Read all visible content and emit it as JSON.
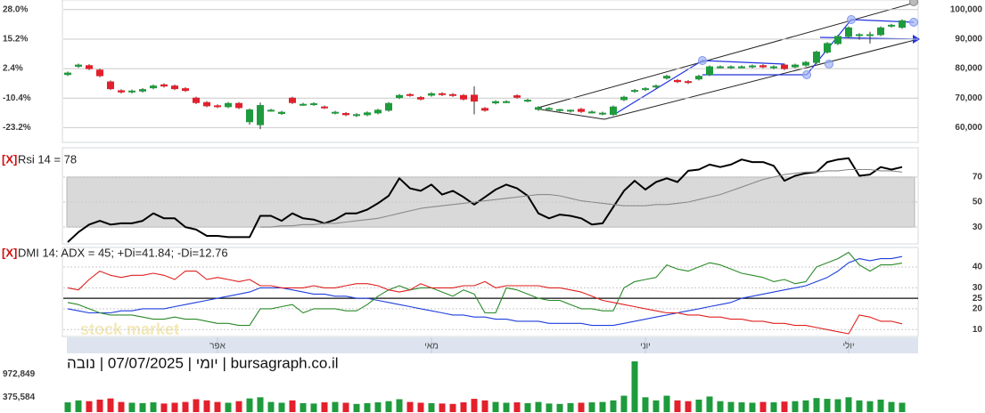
{
  "chart_data": [
    {
      "type": "candlestick",
      "categories": [
        null,
        null,
        null,
        null,
        null,
        null,
        null,
        null,
        null,
        null,
        null,
        null,
        null,
        null,
        "אפר",
        null,
        null,
        null,
        null,
        null,
        null,
        null,
        null,
        null,
        null,
        null,
        null,
        null,
        null,
        null,
        null,
        null,
        null,
        null,
        "מאי",
        null,
        null,
        null,
        null,
        null,
        null,
        null,
        null,
        null,
        null,
        null,
        null,
        null,
        null,
        null,
        null,
        null,
        null,
        null,
        "יוני",
        null,
        null,
        null,
        null,
        null,
        null,
        null,
        null,
        null,
        null,
        null,
        null,
        null,
        null,
        null,
        null,
        null,
        null,
        "יולי",
        null,
        null,
        null,
        null,
        null
      ],
      "open": [
        78000,
        80800,
        81000,
        79500,
        75500,
        72500,
        72100,
        72400,
        73500,
        74500,
        74100,
        73200,
        70000,
        68500,
        67400,
        67100,
        68200,
        62000,
        61000,
        65900,
        64800,
        70000,
        67900,
        67900,
        67000,
        65000,
        64800,
        64100,
        64400,
        65000,
        65900,
        70200,
        71200,
        70200,
        71000,
        71500,
        71200,
        70900,
        71000,
        66500,
        68400,
        68800,
        70800,
        69100,
        66200,
        66500,
        65900,
        65600,
        66200,
        65000,
        64700,
        64500,
        69500,
        72300,
        72900,
        73800,
        76800,
        76000,
        75600,
        76500,
        78000,
        80600,
        80400,
        80600,
        80600,
        81000,
        80300,
        81200,
        80600,
        81200,
        82100,
        85600,
        88500,
        90900,
        91500,
        91200,
        91500,
        94400,
        94000
      ],
      "high": [
        79000,
        81700,
        81500,
        80000,
        76000,
        73000,
        72900,
        73400,
        74600,
        75000,
        74600,
        73700,
        70500,
        69000,
        67900,
        68700,
        68700,
        66500,
        68500,
        66400,
        65700,
        70500,
        68400,
        68600,
        67500,
        65700,
        65300,
        64900,
        65500,
        66400,
        68700,
        71400,
        71700,
        70700,
        72000,
        72000,
        71700,
        71400,
        74000,
        67000,
        69300,
        69300,
        71300,
        69800,
        67300,
        67000,
        66400,
        66100,
        66700,
        65800,
        65400,
        67500,
        70800,
        73100,
        73700,
        74600,
        77900,
        76500,
        76100,
        77900,
        81100,
        81100,
        81100,
        81100,
        81400,
        81500,
        81100,
        81700,
        81700,
        82600,
        86100,
        89000,
        91400,
        94300,
        92000,
        92500,
        94300,
        95200,
        96700
      ],
      "low": [
        77500,
        80300,
        79500,
        77100,
        72700,
        71600,
        71600,
        71900,
        73000,
        73600,
        72700,
        72100,
        68000,
        66900,
        66600,
        66600,
        66300,
        61000,
        59500,
        65400,
        64300,
        68000,
        67400,
        67400,
        66300,
        64500,
        63900,
        63600,
        63900,
        64500,
        65400,
        69700,
        70500,
        69200,
        70500,
        70700,
        70400,
        69200,
        64500,
        65400,
        67900,
        68300,
        69800,
        68600,
        65700,
        66000,
        65400,
        65100,
        65000,
        64800,
        64200,
        64000,
        69000,
        71800,
        72400,
        73300,
        76300,
        75100,
        74800,
        76000,
        77500,
        80100,
        79900,
        80100,
        80100,
        80100,
        79800,
        79500,
        80100,
        80700,
        81600,
        85100,
        88000,
        90400,
        89800,
        88500,
        91000,
        93900,
        93500
      ],
      "close": [
        78500,
        81200,
        80000,
        77600,
        73200,
        72100,
        72400,
        72900,
        74100,
        74100,
        73200,
        72600,
        68500,
        67400,
        67100,
        68200,
        66800,
        66000,
        67500,
        65900,
        65200,
        68500,
        67900,
        68100,
        66800,
        65200,
        64400,
        64400,
        65000,
        65900,
        68200,
        70900,
        71000,
        69700,
        71500,
        71200,
        70900,
        69700,
        69000,
        65900,
        68800,
        68800,
        70300,
        69300,
        66800,
        66500,
        66100,
        65900,
        65500,
        65300,
        64900,
        67000,
        70300,
        72600,
        73200,
        74100,
        77400,
        75600,
        75300,
        77400,
        80600,
        80600,
        80600,
        80600,
        80900,
        80600,
        80600,
        80000,
        81200,
        82100,
        85600,
        88500,
        90900,
        93800,
        91500,
        91500,
        93800,
        94700,
        96200
      ],
      "up_color": "#1e9b3c",
      "down_color": "#e3202b",
      "ylim": [
        55600,
        102650
      ],
      "yticks": [
        {
          "value": 60000,
          "label": "60,000"
        },
        {
          "value": 70000,
          "label": "70,000"
        },
        {
          "value": 80000,
          "label": "80,000"
        },
        {
          "value": 90000,
          "label": "90,000"
        },
        {
          "value": 100000,
          "label": "100,000"
        }
      ],
      "y2lim": [
        -28.9,
        31.4
      ],
      "y2ticks": [
        {
          "value": -23.2,
          "label": "-23.2%"
        },
        {
          "value": -10.4,
          "label": "-10.4%"
        },
        {
          "value": 2.4,
          "label": "2.4%"
        },
        {
          "value": 15.2,
          "label": "15.2%"
        },
        {
          "value": 28.0,
          "label": "28.0%"
        }
      ],
      "watermark": "stock market"
    },
    {
      "type": "line",
      "close_button": "[X]",
      "title": "Rsi 14 = 78",
      "series": [
        {
          "color": "#000000",
          "values": [
            18,
            26,
            32,
            35,
            32,
            33,
            33,
            35,
            41,
            37,
            37,
            30,
            28,
            23,
            23,
            22,
            22,
            22,
            39,
            39,
            35,
            41,
            37,
            36,
            33,
            36,
            41,
            41,
            44,
            49,
            55,
            69,
            61,
            59,
            64,
            56,
            59,
            54,
            48,
            54,
            60,
            64,
            61,
            55,
            41,
            37,
            40,
            39,
            37,
            32,
            33,
            46,
            59,
            67,
            60,
            66,
            69,
            66,
            75,
            76,
            80,
            78,
            80,
            84,
            82,
            82,
            79,
            67,
            71,
            73,
            74,
            82,
            84,
            85,
            71,
            72,
            78,
            76,
            78
          ]
        },
        {
          "color": "#8a8a8a",
          "values": [
            null,
            null,
            null,
            null,
            null,
            null,
            null,
            null,
            null,
            null,
            null,
            null,
            null,
            null,
            null,
            null,
            null,
            null,
            30,
            30,
            31,
            31,
            32,
            32,
            33,
            33,
            34,
            35,
            36,
            37,
            39,
            41,
            43,
            45,
            46,
            47,
            48,
            49,
            50,
            51,
            52,
            53,
            54,
            55,
            56,
            56,
            55,
            53,
            51,
            50,
            49,
            48,
            47,
            47,
            47,
            48,
            48,
            49,
            50,
            52,
            54,
            56,
            59,
            62,
            65,
            68,
            70,
            72,
            73,
            74,
            74,
            75,
            75,
            76,
            76,
            76,
            75,
            75,
            74
          ]
        }
      ],
      "band": [
        30,
        70
      ],
      "ylim": [
        18,
        92
      ],
      "yticks": [
        30,
        50,
        70
      ]
    },
    {
      "type": "line",
      "close_button": "[X]",
      "title": "DMI 14: ADX = 45; +Di=41.84; -Di=12.76",
      "series": [
        {
          "color": "#1f3fdc",
          "values": [
            20,
            19,
            18,
            18,
            18,
            19,
            19,
            20,
            20,
            20,
            21,
            22,
            23,
            24,
            25,
            26,
            27,
            28,
            30,
            30,
            30,
            29,
            28,
            27,
            27,
            26,
            26,
            25,
            25,
            24,
            23,
            22,
            21,
            20,
            19,
            18,
            17,
            17,
            16,
            16,
            15,
            15,
            14,
            14,
            14,
            13,
            13,
            13,
            13,
            12,
            12,
            12,
            13,
            14,
            15,
            16,
            17,
            18,
            19,
            20,
            21,
            22,
            23,
            25,
            26,
            27,
            28,
            29,
            30,
            31,
            33,
            35,
            38,
            42,
            44,
            43,
            44,
            44,
            45
          ]
        },
        {
          "color": "#2a8a2a",
          "values": [
            23,
            22,
            20,
            18,
            17,
            17,
            17,
            16,
            15,
            15,
            16,
            15,
            15,
            14,
            13,
            13,
            12,
            12,
            20,
            20,
            21,
            22,
            18,
            20,
            20,
            20,
            19,
            19,
            22,
            26,
            29,
            31,
            29,
            30,
            30,
            28,
            26,
            29,
            27,
            18,
            18,
            30,
            29,
            27,
            25,
            24,
            24,
            22,
            20,
            20,
            19,
            19,
            30,
            33,
            34,
            35,
            41,
            39,
            38,
            40,
            42,
            41,
            39,
            37,
            36,
            35,
            33,
            34,
            32,
            33,
            40,
            42,
            44,
            47,
            41,
            38,
            41,
            41,
            41.84
          ]
        },
        {
          "color": "#e02020",
          "values": [
            30,
            29,
            34,
            38,
            36,
            35,
            36,
            36,
            37,
            36,
            34,
            38,
            38,
            34,
            35,
            34,
            33,
            34,
            31,
            31,
            30,
            30,
            30,
            31,
            30,
            30,
            31,
            32,
            32,
            31,
            29,
            28,
            29,
            32,
            30,
            30,
            30,
            31,
            31,
            33,
            30,
            31,
            31,
            31,
            31,
            30,
            30,
            29,
            28,
            26,
            24,
            23,
            22,
            21,
            20,
            19,
            18,
            18,
            17,
            17,
            16,
            16,
            15,
            15,
            14,
            14,
            13,
            13,
            12,
            12,
            11,
            10,
            9,
            8,
            17,
            16,
            14,
            14,
            12.76
          ]
        }
      ],
      "reference_line": 25,
      "ylim": [
        8,
        48.5
      ],
      "yticks": [
        10,
        20,
        25,
        30,
        40
      ]
    },
    {
      "type": "bar",
      "title": "יומי | 07/07/2025 | נובה | bursagraph.co.il",
      "values": [
        250000,
        300000,
        280000,
        320000,
        350000,
        260000,
        240000,
        230000,
        250000,
        220000,
        240000,
        260000,
        330000,
        300000,
        260000,
        240000,
        280000,
        350000,
        380000,
        260000,
        240000,
        300000,
        230000,
        220000,
        250000,
        260000,
        240000,
        210000,
        230000,
        250000,
        280000,
        330000,
        260000,
        240000,
        230000,
        220000,
        210000,
        250000,
        340000,
        300000,
        260000,
        240000,
        250000,
        230000,
        260000,
        220000,
        210000,
        230000,
        240000,
        250000,
        260000,
        300000,
        420000,
        1300000,
        380000,
        300000,
        420000,
        300000,
        280000,
        320000,
        400000,
        280000,
        260000,
        250000,
        240000,
        260000,
        250000,
        270000,
        280000,
        300000,
        360000,
        340000,
        330000,
        380000,
        300000,
        280000,
        320000,
        260000,
        240000
      ],
      "ylim": [
        0,
        1436000
      ],
      "yticks": [
        {
          "value": 375584,
          "label": "375,584"
        },
        {
          "value": 972849,
          "label": "972,849"
        }
      ]
    }
  ]
}
